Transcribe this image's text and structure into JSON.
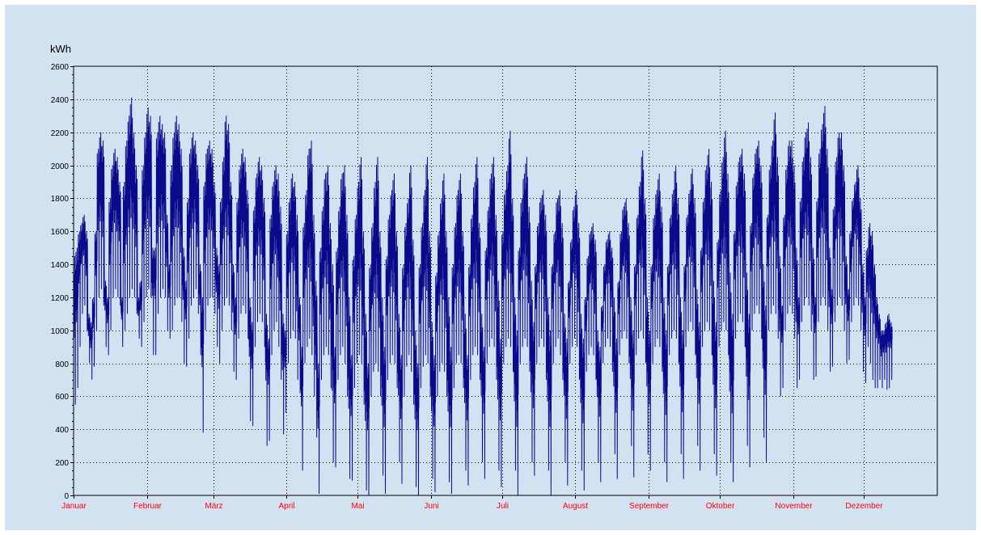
{
  "chart_data": {
    "type": "line",
    "unit_label": "kWh",
    "title": "",
    "xlabel": "",
    "ylabel": "kWh",
    "ylim": [
      0,
      2600
    ],
    "y_ticks": [
      0,
      200,
      400,
      600,
      800,
      1000,
      1200,
      1400,
      1600,
      1800,
      2000,
      2200,
      2400,
      2600
    ],
    "x_categories": [
      "Januar",
      "Februar",
      "März",
      "April",
      "Mai",
      "Juni",
      "Juli",
      "August",
      "September",
      "Oktober",
      "November",
      "Dezember"
    ],
    "month_days": [
      31,
      28,
      31,
      30,
      31,
      30,
      31,
      31,
      30,
      31,
      30,
      31
    ],
    "grid": true,
    "legend": "none",
    "series": [
      {
        "values_note": "daily min/max consumption per day of year (approximate)",
        "daily_min": [
          550,
          650,
          900,
          1100,
          1150,
          1000,
          800,
          700,
          780,
          1000,
          1200,
          1250,
          1150,
          900,
          850,
          1000,
          1200,
          1250,
          1200,
          1150,
          900,
          1000,
          1100,
          1200,
          1250,
          1200,
          1100,
          950,
          900,
          1050,
          1200,
          1250,
          1200,
          850,
          850,
          1100,
          1200,
          1250,
          1200,
          1000,
          950,
          1000,
          1150,
          1200,
          1200,
          1050,
          800,
          780,
          950,
          1150,
          1200,
          1250,
          1100,
          850,
          380,
          1000,
          1150,
          1200,
          1200,
          1100,
          900,
          800,
          1000,
          1150,
          1200,
          1150,
          1000,
          750,
          700,
          950,
          1100,
          1150,
          1100,
          950,
          450,
          420,
          900,
          1050,
          1100,
          1050,
          900,
          300,
          330,
          850,
          1000,
          1050,
          900,
          700,
          370,
          500,
          800,
          950,
          1000,
          950,
          700,
          620,
          150,
          800,
          900,
          950,
          850,
          600,
          350,
          10,
          700,
          850,
          900,
          850,
          650,
          200,
          170,
          700,
          850,
          900,
          800,
          600,
          100,
          90,
          650,
          800,
          850,
          800,
          550,
          30,
          0,
          600,
          750,
          800,
          750,
          600,
          120,
          10,
          700,
          800,
          850,
          800,
          650,
          200,
          70,
          600,
          780,
          850,
          750,
          550,
          50,
          0,
          650,
          780,
          850,
          800,
          600,
          100,
          20,
          600,
          750,
          800,
          750,
          600,
          80,
          10,
          650,
          800,
          850,
          800,
          650,
          150,
          60,
          700,
          850,
          900,
          850,
          700,
          200,
          100,
          800,
          900,
          950,
          900,
          700,
          150,
          50,
          800,
          900,
          950,
          900,
          750,
          150,
          0,
          800,
          900,
          950,
          900,
          750,
          200,
          120,
          800,
          900,
          950,
          900,
          700,
          150,
          0,
          800,
          900,
          950,
          850,
          700,
          200,
          60,
          800,
          900,
          950,
          900,
          700,
          150,
          30,
          750,
          850,
          900,
          850,
          700,
          200,
          80,
          800,
          900,
          950,
          900,
          750,
          250,
          100,
          850,
          950,
          1000,
          950,
          800,
          300,
          110,
          850,
          950,
          1000,
          950,
          800,
          250,
          150,
          800,
          900,
          950,
          900,
          750,
          200,
          80,
          850,
          950,
          1000,
          950,
          800,
          250,
          100,
          900,
          1000,
          1050,
          1000,
          850,
          300,
          150,
          900,
          1000,
          1050,
          1000,
          850,
          250,
          120,
          900,
          1000,
          1050,
          1000,
          850,
          200,
          80,
          950,
          1050,
          1100,
          1050,
          900,
          300,
          170,
          1000,
          1100,
          1150,
          1100,
          950,
          350,
          200,
          1000,
          1100,
          1150,
          1100,
          950,
          600,
          650,
          1000,
          1100,
          1150,
          1100,
          950,
          650,
          700,
          1050,
          1150,
          1200,
          1150,
          1000,
          700,
          720,
          1050,
          1150,
          1200,
          1150,
          1000,
          750,
          780,
          1050,
          1150,
          1200,
          1150,
          1000,
          800,
          820,
          1050,
          1150,
          1200,
          1150,
          1000,
          750,
          680,
          900,
          800,
          700,
          650,
          650,
          700,
          650,
          700,
          640,
          650,
          700
        ],
        "daily_max": [
          1450,
          1500,
          1600,
          1650,
          1700,
          1600,
          1100,
          1050,
          1200,
          1600,
          2100,
          2200,
          2150,
          1300,
          1200,
          1800,
          2000,
          2100,
          2050,
          1900,
          1200,
          1900,
          2150,
          2300,
          2410,
          2200,
          2000,
          1200,
          1300,
          2000,
          2200,
          2350,
          2300,
          1500,
          1500,
          2200,
          2300,
          2250,
          2200,
          1700,
          1400,
          2000,
          2200,
          2300,
          2250,
          2100,
          1500,
          1300,
          1800,
          2100,
          2200,
          2150,
          2000,
          1400,
          1200,
          1900,
          2100,
          2150,
          2100,
          1900,
          1500,
          1400,
          1800,
          2050,
          2300,
          2250,
          1900,
          1400,
          1200,
          1800,
          2000,
          2100,
          2050,
          1850,
          1200,
          1050,
          1750,
          1950,
          2050,
          2000,
          1800,
          1100,
          950,
          1700,
          1900,
          2000,
          1950,
          1750,
          1100,
          1000,
          1600,
          1800,
          1950,
          1900,
          1700,
          1200,
          900,
          1650,
          1850,
          2100,
          2150,
          1700,
          1300,
          800,
          1500,
          1750,
          1950,
          2000,
          1650,
          1400,
          900,
          1500,
          1750,
          1950,
          2000,
          1700,
          1200,
          850,
          1450,
          1700,
          1900,
          2050,
          1600,
          1100,
          800,
          1400,
          1650,
          1900,
          2050,
          1600,
          1200,
          900,
          1450,
          1700,
          1850,
          1950,
          1600,
          1100,
          850,
          1400,
          1650,
          1800,
          2000,
          1550,
          1000,
          800,
          1400,
          1650,
          1850,
          2050,
          1600,
          1050,
          850,
          1350,
          1600,
          1800,
          1950,
          1600,
          1200,
          900,
          1400,
          1650,
          1850,
          1950,
          1600,
          1100,
          850,
          1400,
          1700,
          1900,
          2050,
          1650,
          1100,
          900,
          1500,
          1750,
          1950,
          2050,
          1700,
          1300,
          950,
          1600,
          1850,
          2000,
          2210,
          1800,
          1200,
          1000,
          1500,
          1800,
          1950,
          2050,
          1750,
          1300,
          1050,
          1400,
          1650,
          1800,
          1850,
          1700,
          1200,
          1000,
          1400,
          1600,
          1800,
          1850,
          1650,
          1100,
          950,
          1300,
          1550,
          1750,
          1850,
          1650,
          1100,
          950,
          1200,
          1450,
          1600,
          1650,
          1550,
          1000,
          900,
          1150,
          1400,
          1550,
          1600,
          1500,
          1200,
          950,
          1300,
          1600,
          1750,
          1800,
          1650,
          1200,
          1000,
          1400,
          1700,
          1900,
          2090,
          1800,
          1200,
          1000,
          1400,
          1700,
          1850,
          1950,
          1750,
          1200,
          1000,
          1400,
          1700,
          1850,
          2000,
          1800,
          1200,
          1000,
          1400,
          1700,
          1850,
          1980,
          1800,
          1250,
          1050,
          1500,
          1800,
          2000,
          2100,
          1900,
          1300,
          1050,
          1550,
          1850,
          2050,
          2210,
          1950,
          1350,
          1100,
          1600,
          1900,
          2050,
          2100,
          1950,
          1350,
          1100,
          1650,
          1950,
          2100,
          2150,
          2000,
          1400,
          1150,
          1700,
          2000,
          2150,
          2320,
          2050,
          1450,
          1150,
          1700,
          2000,
          2150,
          2150,
          2000,
          1500,
          1200,
          1800,
          2050,
          2200,
          2260,
          2050,
          1500,
          1200,
          1800,
          2100,
          2250,
          2360,
          2100,
          1500,
          1250,
          1750,
          2050,
          2200,
          2200,
          2000,
          1450,
          1250,
          1600,
          1800,
          1900,
          2000,
          1800,
          1400,
          1200,
          1500,
          1650,
          1600,
          1400,
          1200,
          1100,
          1000,
          1000,
          1050,
          1100,
          1050,
          1100,
          1050,
          1100,
          1000,
          1050,
          1100,
          1000
        ]
      }
    ]
  }
}
